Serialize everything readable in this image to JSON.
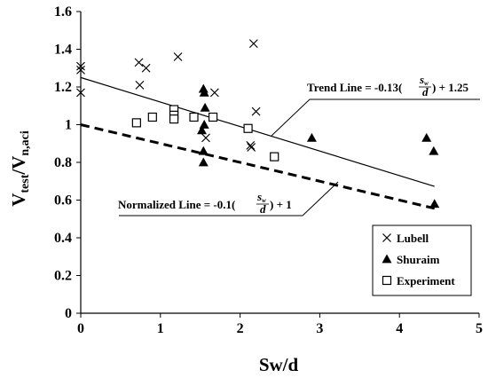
{
  "chart_data": {
    "type": "scatter",
    "xlabel_main": "Sw/d",
    "ylabel_main": "V",
    "ylabel_sub1": "test",
    "ylabel_slash": "/V",
    "ylabel_sub2": "n,aci",
    "xlim": [
      0,
      5
    ],
    "ylim": [
      0,
      1.6
    ],
    "x_ticks": [
      "0",
      "1",
      "2",
      "3",
      "4",
      "5"
    ],
    "y_ticks": [
      "0",
      "0.2",
      "0.4",
      "0.6",
      "0.8",
      "1",
      "1.2",
      "1.4",
      "1.6"
    ],
    "grid": false,
    "legend_position": "bottom-right",
    "series": [
      {
        "name": "Lubell",
        "marker": "x",
        "points": [
          [
            0,
            1.31
          ],
          [
            0,
            1.29
          ],
          [
            0,
            1.17
          ],
          [
            0.73,
            1.33
          ],
          [
            0.82,
            1.3
          ],
          [
            0.74,
            1.21
          ],
          [
            1.22,
            1.36
          ],
          [
            2.17,
            1.43
          ],
          [
            1.68,
            1.17
          ],
          [
            1.57,
            0.93
          ],
          [
            2.13,
            0.89
          ],
          [
            2.14,
            0.88
          ],
          [
            2.2,
            1.07
          ]
        ]
      },
      {
        "name": "Shuraim",
        "marker": "triangle",
        "points": [
          [
            1.54,
            1.19
          ],
          [
            1.55,
            1.17
          ],
          [
            1.56,
            1.09
          ],
          [
            1.52,
            0.97
          ],
          [
            1.55,
            1.0
          ],
          [
            1.54,
            0.86
          ],
          [
            1.54,
            0.8
          ],
          [
            2.9,
            0.93
          ],
          [
            4.34,
            0.93
          ],
          [
            4.43,
            0.86
          ],
          [
            4.44,
            0.58
          ]
        ]
      },
      {
        "name": "Experiment",
        "marker": "square",
        "points": [
          [
            0.7,
            1.01
          ],
          [
            0.9,
            1.04
          ],
          [
            1.17,
            1.08
          ],
          [
            1.17,
            1.05
          ],
          [
            1.17,
            1.03
          ],
          [
            1.42,
            1.04
          ],
          [
            1.66,
            1.04
          ],
          [
            2.1,
            0.98
          ],
          [
            2.43,
            0.83
          ]
        ]
      }
    ],
    "lines": [
      {
        "name": "trend",
        "style": "solid",
        "x": [
          0,
          4.44
        ],
        "y": [
          1.25,
          0.6728
        ]
      },
      {
        "name": "normalized",
        "style": "dashed",
        "x": [
          0,
          4.44
        ],
        "y": [
          1.0,
          0.556
        ]
      }
    ],
    "annotations": {
      "trend_prefix": "Trend Line = -0.13(",
      "trend_suffix": ") + 1.25",
      "normalized_prefix": "Normalized Line = -0.1(",
      "normalized_suffix": ") + 1",
      "frac_num_s": "s",
      "frac_num_sub": "w",
      "frac_den": "d"
    }
  }
}
